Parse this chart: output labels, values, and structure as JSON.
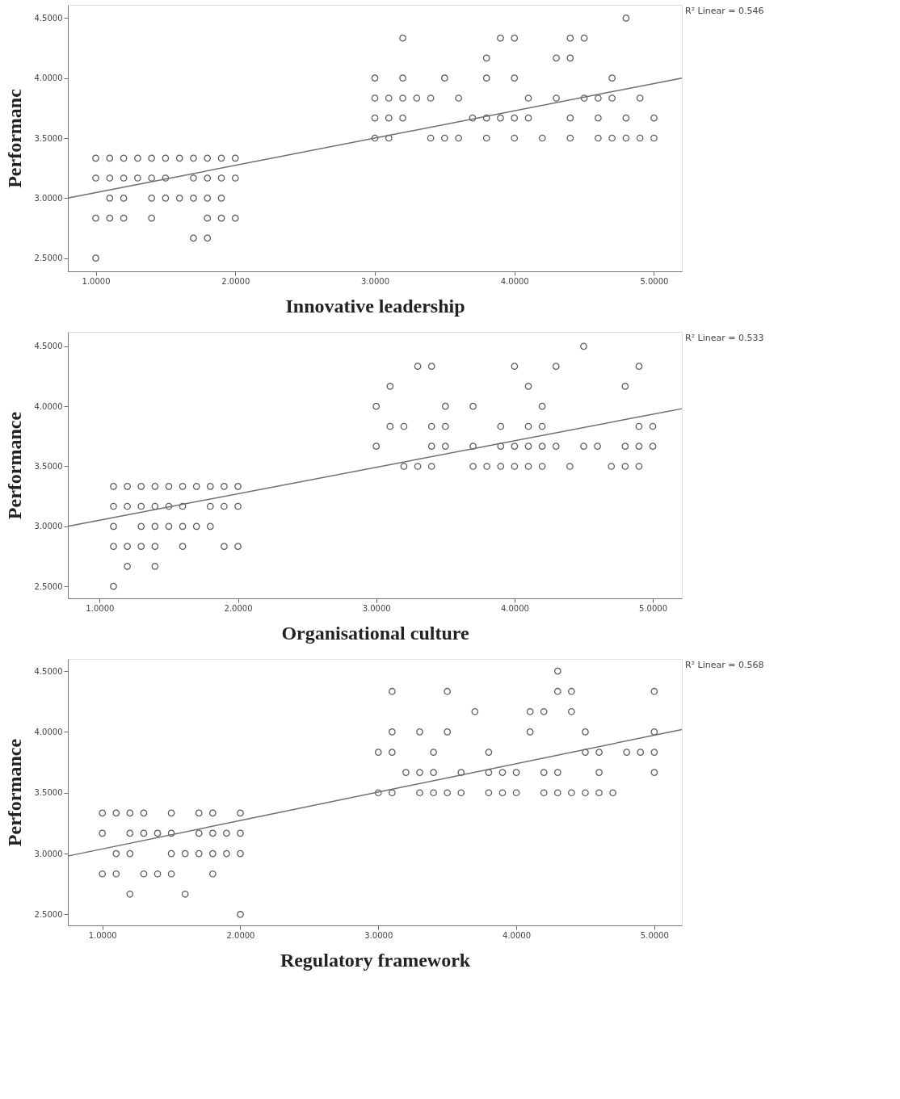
{
  "chart_data": [
    {
      "type": "scatter",
      "xlabel": "Innovative leadership",
      "ylabel": "Performanc",
      "annotations": [
        "R² Linear = 0.546"
      ],
      "grid": false,
      "xlim": [
        0.8,
        5.2
      ],
      "ylim": [
        2.39,
        4.61
      ],
      "xticks": [
        {
          "value": 1,
          "label": "1.0000"
        },
        {
          "value": 2,
          "label": "2.0000"
        },
        {
          "value": 3,
          "label": "3.0000"
        },
        {
          "value": 4,
          "label": "4.0000"
        },
        {
          "value": 5,
          "label": "5.0000"
        }
      ],
      "yticks": [
        {
          "value": 2.5,
          "label": "2.5000"
        },
        {
          "value": 3,
          "label": "3.0000"
        },
        {
          "value": 3.5,
          "label": "3.5000"
        },
        {
          "value": 4,
          "label": "4.0000"
        },
        {
          "value": 4.5,
          "label": "4.5000"
        }
      ],
      "series": [
        {
          "marker": "circle",
          "color": "#4d4d4d",
          "x": [
            1.0,
            1.1,
            1.2,
            1.3,
            1.4,
            1.5,
            1.6,
            1.7,
            1.8,
            1.9,
            2.0,
            1.0,
            1.1,
            1.2,
            1.3,
            1.4,
            1.5,
            1.7,
            1.8,
            1.9,
            2.0,
            1.1,
            1.2,
            1.4,
            1.5,
            1.6,
            1.7,
            1.8,
            1.9,
            1.0,
            1.1,
            1.2,
            1.4,
            1.8,
            1.9,
            2.0,
            1.7,
            1.8,
            1.0,
            4.8,
            3.2,
            3.9,
            4.0,
            4.4,
            4.5,
            3.8,
            4.3,
            4.4,
            3.0,
            3.2,
            3.5,
            3.8,
            4.0,
            4.7,
            3.0,
            3.1,
            3.2,
            3.3,
            3.4,
            3.6,
            4.1,
            4.3,
            4.5,
            4.6,
            4.7,
            4.9,
            3.0,
            3.1,
            3.2,
            3.7,
            3.8,
            3.9,
            4.0,
            4.1,
            4.4,
            4.6,
            4.8,
            5.0,
            3.0,
            3.1,
            3.4,
            3.5,
            3.6,
            3.8,
            4.0,
            4.2,
            4.4,
            4.6,
            4.7,
            4.8,
            4.9,
            5.0
          ],
          "values": [
            3.333,
            3.333,
            3.333,
            3.333,
            3.333,
            3.333,
            3.333,
            3.333,
            3.333,
            3.333,
            3.333,
            3.167,
            3.167,
            3.167,
            3.167,
            3.167,
            3.167,
            3.167,
            3.167,
            3.167,
            3.167,
            3.0,
            3.0,
            3.0,
            3.0,
            3.0,
            3.0,
            3.0,
            3.0,
            2.833,
            2.833,
            2.833,
            2.833,
            2.833,
            2.833,
            2.833,
            2.667,
            2.667,
            2.5,
            4.5,
            4.333,
            4.333,
            4.333,
            4.333,
            4.333,
            4.167,
            4.167,
            4.167,
            4.0,
            4.0,
            4.0,
            4.0,
            4.0,
            4.0,
            3.833,
            3.833,
            3.833,
            3.833,
            3.833,
            3.833,
            3.833,
            3.833,
            3.833,
            3.833,
            3.833,
            3.833,
            3.667,
            3.667,
            3.667,
            3.667,
            3.667,
            3.667,
            3.667,
            3.667,
            3.667,
            3.667,
            3.667,
            3.667,
            3.5,
            3.5,
            3.5,
            3.5,
            3.5,
            3.5,
            3.5,
            3.5,
            3.5,
            3.5,
            3.5,
            3.5,
            3.5,
            3.5
          ]
        },
        {
          "type": "line",
          "marker": "none",
          "color": "#6e6e6e",
          "x": [
            0.8,
            5.2
          ],
          "values": [
            3.0,
            4.0
          ]
        }
      ]
    },
    {
      "type": "scatter",
      "xlabel": "Organisational culture",
      "ylabel": "Performance",
      "annotations": [
        "R² Linear = 0.533"
      ],
      "grid": false,
      "xlim": [
        0.77,
        5.21
      ],
      "ylim": [
        2.4,
        4.62
      ],
      "xticks": [
        {
          "value": 1,
          "label": "1.0000"
        },
        {
          "value": 2,
          "label": "2.0000"
        },
        {
          "value": 3,
          "label": "3.0000"
        },
        {
          "value": 4,
          "label": "4.0000"
        },
        {
          "value": 5,
          "label": "5.0000"
        }
      ],
      "yticks": [
        {
          "value": 2.5,
          "label": "2.5000"
        },
        {
          "value": 3,
          "label": "3.0000"
        },
        {
          "value": 3.5,
          "label": "3.5000"
        },
        {
          "value": 4,
          "label": "4.0000"
        },
        {
          "value": 4.5,
          "label": "4.5000"
        }
      ],
      "series": [
        {
          "marker": "circle",
          "color": "#4d4d4d",
          "x": [
            1.1,
            1.2,
            1.3,
            1.4,
            1.5,
            1.6,
            1.7,
            1.8,
            1.9,
            2.0,
            1.1,
            1.2,
            1.3,
            1.4,
            1.5,
            1.6,
            1.8,
            1.9,
            2.0,
            1.1,
            1.3,
            1.4,
            1.5,
            1.6,
            1.7,
            1.8,
            1.1,
            1.2,
            1.3,
            1.4,
            1.6,
            1.9,
            2.0,
            1.2,
            1.4,
            1.1,
            4.5,
            3.3,
            3.4,
            4.0,
            4.3,
            4.9,
            3.1,
            4.1,
            4.8,
            3.0,
            3.5,
            3.7,
            4.2,
            3.1,
            3.2,
            3.4,
            3.5,
            3.9,
            4.1,
            4.2,
            4.9,
            5.0,
            3.0,
            3.4,
            3.5,
            3.7,
            3.9,
            4.0,
            4.1,
            4.2,
            4.3,
            4.5,
            4.6,
            4.8,
            4.9,
            5.0,
            3.2,
            3.3,
            3.4,
            3.7,
            3.8,
            3.9,
            4.0,
            4.1,
            4.2,
            4.4,
            4.7,
            4.8,
            4.9
          ],
          "values": [
            3.333,
            3.333,
            3.333,
            3.333,
            3.333,
            3.333,
            3.333,
            3.333,
            3.333,
            3.333,
            3.167,
            3.167,
            3.167,
            3.167,
            3.167,
            3.167,
            3.167,
            3.167,
            3.167,
            3.0,
            3.0,
            3.0,
            3.0,
            3.0,
            3.0,
            3.0,
            2.833,
            2.833,
            2.833,
            2.833,
            2.833,
            2.833,
            2.833,
            2.667,
            2.667,
            2.5,
            4.5,
            4.333,
            4.333,
            4.333,
            4.333,
            4.333,
            4.167,
            4.167,
            4.167,
            4.0,
            4.0,
            4.0,
            4.0,
            3.833,
            3.833,
            3.833,
            3.833,
            3.833,
            3.833,
            3.833,
            3.833,
            3.833,
            3.667,
            3.667,
            3.667,
            3.667,
            3.667,
            3.667,
            3.667,
            3.667,
            3.667,
            3.667,
            3.667,
            3.667,
            3.667,
            3.667,
            3.5,
            3.5,
            3.5,
            3.5,
            3.5,
            3.5,
            3.5,
            3.5,
            3.5,
            3.5,
            3.5,
            3.5,
            3.5
          ]
        },
        {
          "type": "line",
          "marker": "none",
          "color": "#6e6e6e",
          "x": [
            0.77,
            5.21
          ],
          "values": [
            3.0,
            3.98
          ]
        }
      ]
    },
    {
      "type": "scatter",
      "xlabel": "Regulatory framework",
      "ylabel": "Performance",
      "annotations": [
        "R² Linear = 0.568"
      ],
      "grid": false,
      "xlim": [
        0.75,
        5.2
      ],
      "ylim": [
        2.41,
        4.6
      ],
      "xticks": [
        {
          "value": 1,
          "label": "1.0000"
        },
        {
          "value": 2,
          "label": "2.0000"
        },
        {
          "value": 3,
          "label": "3.0000"
        },
        {
          "value": 4,
          "label": "4.0000"
        },
        {
          "value": 5,
          "label": "5.0000"
        }
      ],
      "yticks": [
        {
          "value": 2.5,
          "label": "2.5000"
        },
        {
          "value": 3,
          "label": "3.0000"
        },
        {
          "value": 3.5,
          "label": "3.5000"
        },
        {
          "value": 4,
          "label": "4.0000"
        },
        {
          "value": 4.5,
          "label": "4.5000"
        }
      ],
      "series": [
        {
          "marker": "circle",
          "color": "#4d4d4d",
          "x": [
            1.0,
            1.1,
            1.2,
            1.3,
            1.5,
            1.7,
            1.8,
            2.0,
            1.0,
            1.2,
            1.3,
            1.4,
            1.5,
            1.7,
            1.8,
            1.9,
            2.0,
            1.1,
            1.2,
            1.5,
            1.6,
            1.7,
            1.8,
            1.9,
            2.0,
            1.0,
            1.1,
            1.3,
            1.4,
            1.5,
            1.8,
            1.2,
            1.6,
            2.0,
            4.3,
            3.1,
            3.5,
            4.3,
            4.4,
            5.0,
            3.7,
            4.1,
            4.2,
            4.4,
            3.1,
            3.3,
            3.5,
            4.1,
            4.5,
            5.0,
            3.0,
            3.1,
            3.4,
            3.8,
            4.5,
            4.6,
            4.8,
            4.9,
            5.0,
            3.2,
            3.3,
            3.4,
            3.6,
            3.8,
            3.9,
            4.0,
            4.2,
            4.3,
            4.6,
            5.0,
            3.0,
            3.1,
            3.3,
            3.4,
            3.5,
            3.6,
            3.8,
            3.9,
            4.0,
            4.2,
            4.3,
            4.4,
            4.5,
            4.6,
            4.7
          ],
          "values": [
            3.333,
            3.333,
            3.333,
            3.333,
            3.333,
            3.333,
            3.333,
            3.333,
            3.167,
            3.167,
            3.167,
            3.167,
            3.167,
            3.167,
            3.167,
            3.167,
            3.167,
            3.0,
            3.0,
            3.0,
            3.0,
            3.0,
            3.0,
            3.0,
            3.0,
            2.833,
            2.833,
            2.833,
            2.833,
            2.833,
            2.833,
            2.667,
            2.667,
            2.5,
            4.5,
            4.333,
            4.333,
            4.333,
            4.333,
            4.333,
            4.167,
            4.167,
            4.167,
            4.167,
            4.0,
            4.0,
            4.0,
            4.0,
            4.0,
            4.0,
            3.833,
            3.833,
            3.833,
            3.833,
            3.833,
            3.833,
            3.833,
            3.833,
            3.833,
            3.667,
            3.667,
            3.667,
            3.667,
            3.667,
            3.667,
            3.667,
            3.667,
            3.667,
            3.667,
            3.667,
            3.5,
            3.5,
            3.5,
            3.5,
            3.5,
            3.5,
            3.5,
            3.5,
            3.5,
            3.5,
            3.5,
            3.5,
            3.5,
            3.5,
            3.5
          ]
        },
        {
          "type": "line",
          "marker": "none",
          "color": "#6e6e6e",
          "x": [
            0.75,
            5.2
          ],
          "values": [
            2.98,
            4.02
          ]
        }
      ]
    }
  ]
}
